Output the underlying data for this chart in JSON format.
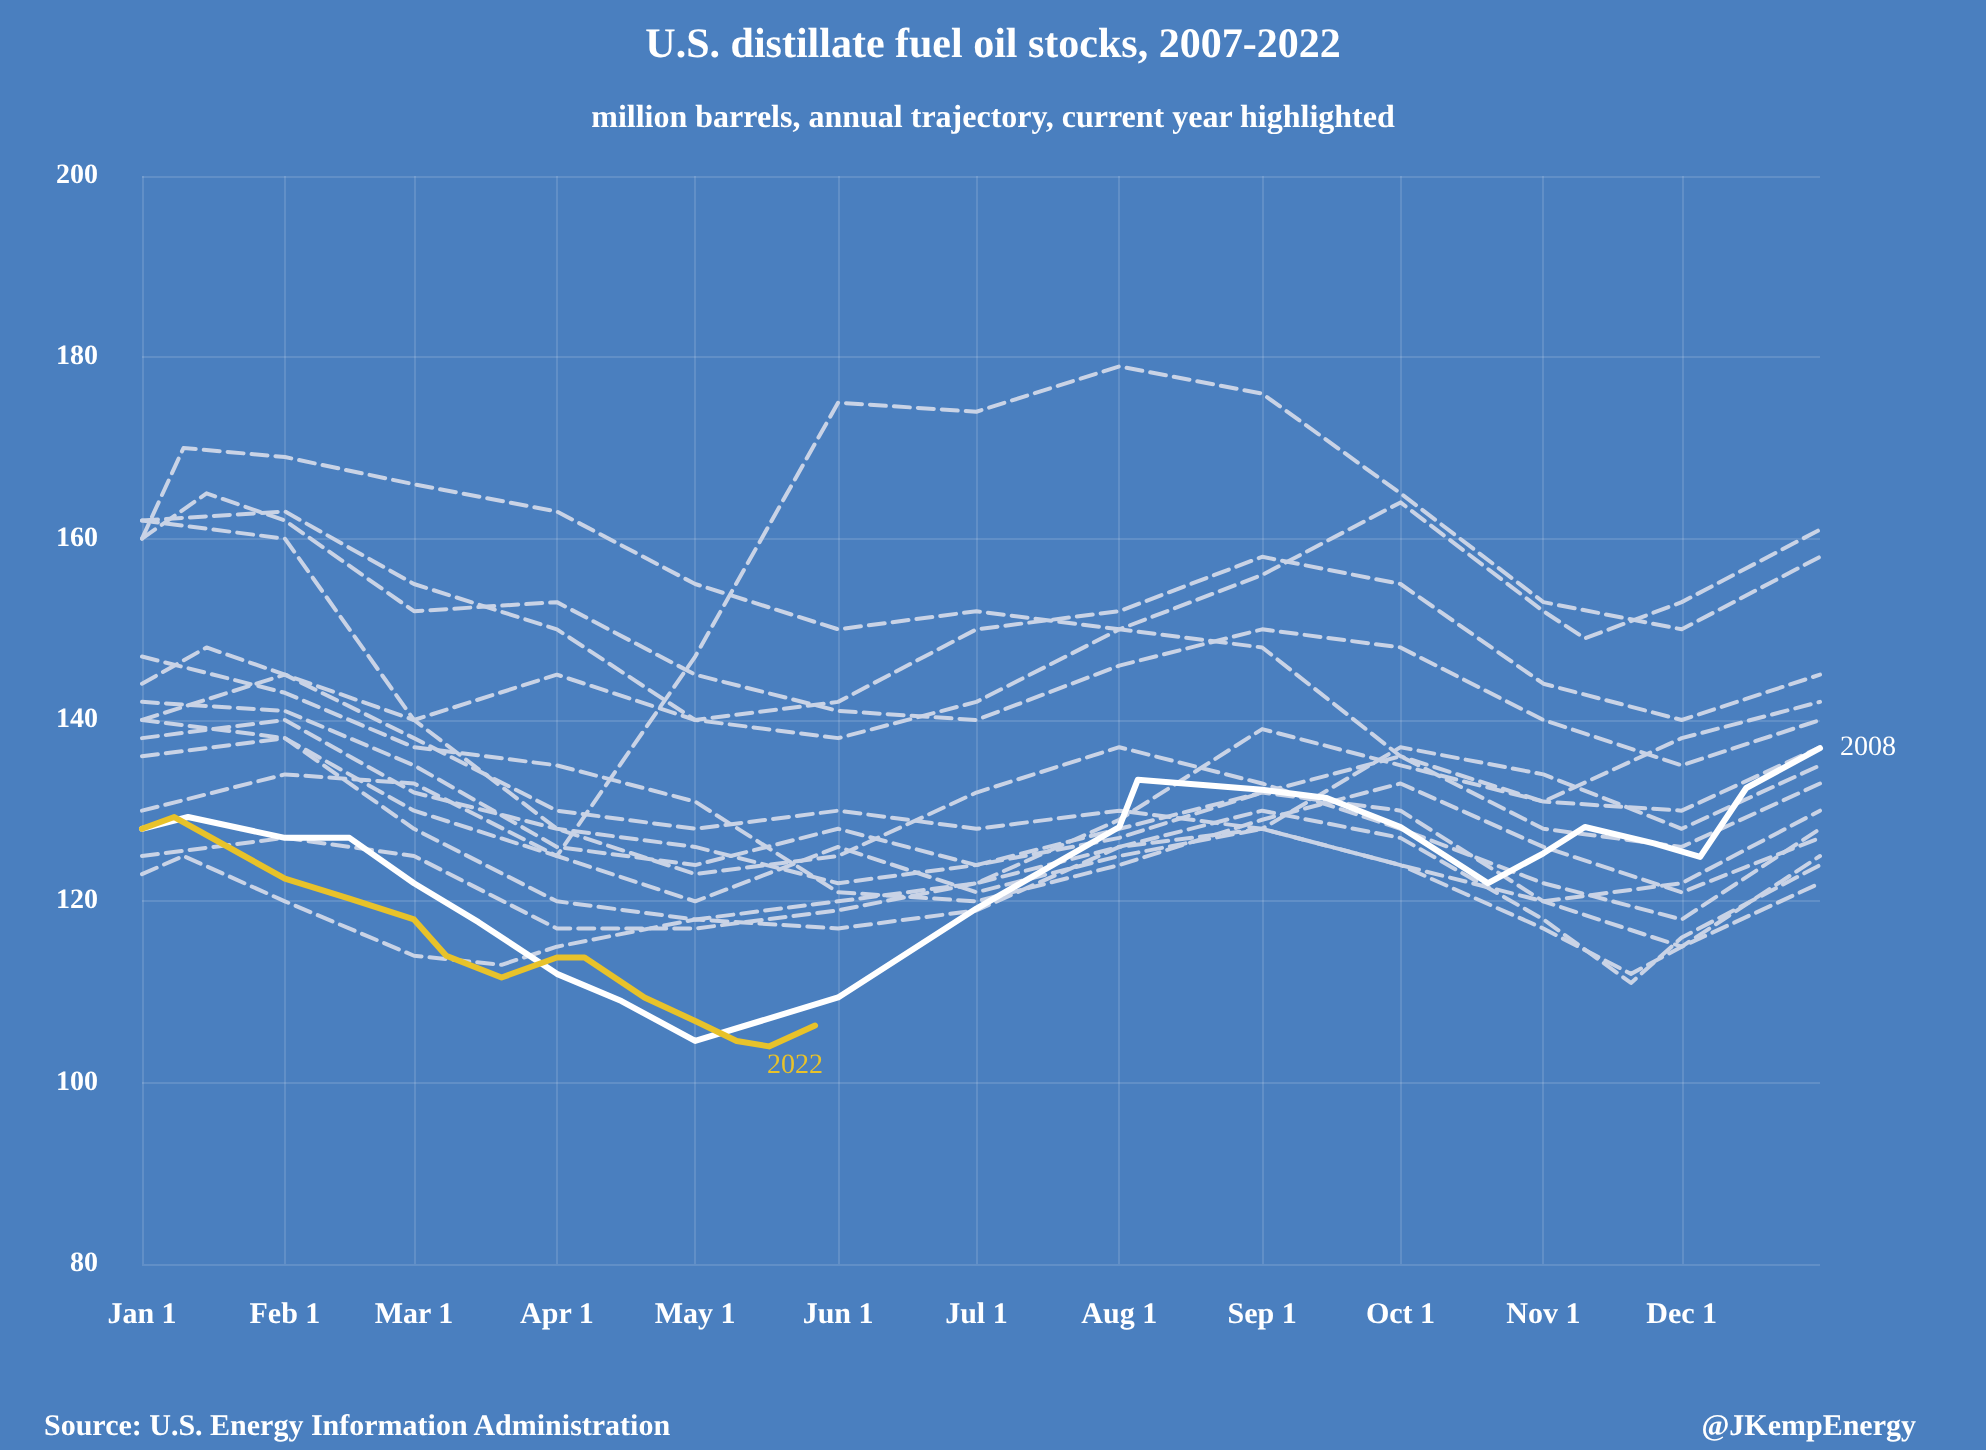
{
  "chart_data": {
    "type": "line",
    "title": "U.S. distillate fuel oil stocks, 2007-2022",
    "subtitle": "million barrels, annual trajectory, current year highlighted",
    "annotations": [
      "Source: U.S. Energy Information Administration",
      "@JKempEnergy"
    ],
    "xlim": [
      "--01-01",
      "--12-31"
    ],
    "xticks": [
      {
        "value": "--01-01",
        "label": "Jan 1"
      },
      {
        "value": "--02-01",
        "label": "Feb 1"
      },
      {
        "value": "--03-01",
        "label": "Mar 1"
      },
      {
        "value": "--04-01",
        "label": "Apr 1"
      },
      {
        "value": "--05-01",
        "label": "May 1"
      },
      {
        "value": "--06-01",
        "label": "Jun 1"
      },
      {
        "value": "--07-01",
        "label": "Jul 1"
      },
      {
        "value": "--08-01",
        "label": "Aug 1"
      },
      {
        "value": "--09-01",
        "label": "Sep 1"
      },
      {
        "value": "--10-01",
        "label": "Oct 1"
      },
      {
        "value": "--11-01",
        "label": "Nov 1"
      },
      {
        "value": "--12-01",
        "label": "Dec 1"
      }
    ],
    "ylim": [
      80,
      200
    ],
    "yticks": [
      80,
      100,
      120,
      140,
      160,
      180,
      200
    ],
    "grid": true,
    "marker": "none",
    "series": [
      {
        "color": "#c9d3e6",
        "line_style": "dashed",
        "x": [
          "--01-01",
          "--02-01",
          "--03-01",
          "--04-01",
          "--05-01",
          "--06-01",
          "--07-01",
          "--08-01",
          "--09-01",
          "--10-01",
          "--11-01",
          "--12-01",
          "--12-31"
        ],
        "values": [
          140,
          138,
          130,
          125,
          147,
          175,
          174,
          179,
          176,
          165,
          153,
          150,
          158
        ]
      },
      {
        "color": "#c9d3e6",
        "line_style": "dashed",
        "x": [
          "--01-01",
          "--01-10",
          "--02-01",
          "--03-01",
          "--04-01",
          "--05-01",
          "--06-01",
          "--07-01",
          "--08-01",
          "--09-01",
          "--10-01",
          "--11-01",
          "--11-10",
          "--12-01",
          "--12-31"
        ],
        "values": [
          160,
          170,
          169,
          166,
          163,
          155,
          150,
          152,
          150,
          156,
          164,
          152,
          149,
          153,
          161
        ]
      },
      {
        "color": "#c9d3e6",
        "line_style": "dashed",
        "x": [
          "--01-01",
          "--02-01",
          "--03-01",
          "--04-01",
          "--05-01",
          "--06-01",
          "--07-01",
          "--08-01",
          "--09-01",
          "--10-01",
          "--11-01",
          "--12-01",
          "--12-31"
        ],
        "values": [
          162,
          163,
          155,
          150,
          140,
          142,
          150,
          152,
          158,
          155,
          144,
          140,
          145
        ]
      },
      {
        "color": "#c9d3e6",
        "line_style": "dashed",
        "x": [
          "--01-01",
          "--01-15",
          "--02-01",
          "--03-01",
          "--04-01",
          "--05-01",
          "--06-01",
          "--07-01",
          "--08-01",
          "--09-01",
          "--10-01",
          "--11-01",
          "--12-01",
          "--12-31"
        ],
        "values": [
          160,
          165,
          162,
          152,
          153,
          145,
          141,
          140,
          146,
          150,
          148,
          140,
          135,
          140
        ]
      },
      {
        "color": "#c9d3e6",
        "line_style": "dashed",
        "x": [
          "--01-01",
          "--02-01",
          "--03-01",
          "--04-01",
          "--05-01",
          "--06-01",
          "--07-01",
          "--08-01",
          "--09-01",
          "--10-01",
          "--11-01",
          "--12-01",
          "--12-31"
        ],
        "values": [
          162,
          160,
          140,
          128,
          123,
          125,
          132,
          137,
          133,
          128,
          122,
          118,
          128
        ]
      },
      {
        "color": "#c9d3e6",
        "line_style": "dashed",
        "x": [
          "--01-01",
          "--01-15",
          "--02-01",
          "--03-01",
          "--04-01",
          "--05-01",
          "--06-01",
          "--07-01",
          "--08-01",
          "--09-01",
          "--10-01",
          "--11-01",
          "--12-01",
          "--12-31"
        ],
        "values": [
          144,
          148,
          145,
          140,
          145,
          140,
          138,
          142,
          150,
          148,
          136,
          131,
          138,
          142
        ]
      },
      {
        "color": "#c9d3e6",
        "line_style": "dashed",
        "x": [
          "--01-01",
          "--02-01",
          "--03-01",
          "--04-01",
          "--05-01",
          "--06-01",
          "--07-01",
          "--08-01",
          "--09-01",
          "--10-01",
          "--11-01",
          "--12-01",
          "--12-31"
        ],
        "values": [
          140,
          145,
          138,
          130,
          128,
          130,
          128,
          130,
          128,
          137,
          134,
          128,
          135
        ]
      },
      {
        "color": "#c9d3e6",
        "line_style": "dashed",
        "x": [
          "--01-01",
          "--02-01",
          "--03-01",
          "--04-01",
          "--05-01",
          "--06-01",
          "--07-01",
          "--08-01",
          "--09-01",
          "--10-01",
          "--11-01",
          "--12-01",
          "--12-31"
        ],
        "values": [
          138,
          140,
          132,
          128,
          126,
          122,
          124,
          128,
          132,
          130,
          120,
          115,
          125
        ]
      },
      {
        "color": "#c9d3e6",
        "line_style": "dashed",
        "x": [
          "--01-01",
          "--02-01",
          "--03-01",
          "--04-01",
          "--05-01",
          "--06-01",
          "--07-01",
          "--08-01",
          "--09-01",
          "--10-01",
          "--11-01",
          "--11-20",
          "--12-01",
          "--12-31"
        ],
        "values": [
          136,
          138,
          128,
          120,
          118,
          120,
          122,
          126,
          130,
          127,
          118,
          111,
          116,
          124
        ]
      },
      {
        "color": "#c9d3e6",
        "line_style": "dashed",
        "x": [
          "--01-01",
          "--02-01",
          "--03-01",
          "--04-01",
          "--05-01",
          "--06-01",
          "--07-01",
          "--08-01",
          "--09-01",
          "--10-01",
          "--11-01",
          "--12-01",
          "--12-31"
        ],
        "values": [
          130,
          134,
          133,
          125,
          120,
          126,
          121,
          125,
          128,
          124,
          120,
          122,
          130
        ]
      },
      {
        "color": "#c9d3e6",
        "line_style": "dashed",
        "x": [
          "--01-01",
          "--01-10",
          "--02-01",
          "--03-01",
          "--03-20",
          "--04-01",
          "--05-01",
          "--06-01",
          "--07-01",
          "--08-01",
          "--09-01",
          "--10-01",
          "--11-01",
          "--11-20",
          "--12-01",
          "--12-31"
        ],
        "values": [
          123,
          125,
          120,
          114,
          113,
          115,
          118,
          117,
          119,
          126,
          128,
          124,
          117,
          112,
          115,
          122
        ]
      },
      {
        "color": "#c9d3e6",
        "line_style": "dashed",
        "x": [
          "--01-01",
          "--02-01",
          "--03-01",
          "--04-01",
          "--05-01",
          "--06-01",
          "--07-01",
          "--08-01",
          "--09-01",
          "--10-01",
          "--11-01",
          "--12-01",
          "--12-31"
        ],
        "values": [
          142,
          141,
          135,
          126,
          124,
          128,
          124,
          127,
          132,
          136,
          128,
          126,
          133
        ]
      },
      {
        "color": "#c9d3e6",
        "line_style": "dashed",
        "x": [
          "--01-01",
          "--02-01",
          "--03-01",
          "--04-01",
          "--05-01",
          "--06-01",
          "--07-01",
          "--08-01",
          "--09-01",
          "--10-01",
          "--11-01",
          "--12-01",
          "--12-31"
        ],
        "values": [
          147,
          143,
          137,
          135,
          131,
          121,
          120,
          124,
          129,
          133,
          126,
          121,
          127
        ]
      },
      {
        "color": "#c9d3e6",
        "line_style": "dashed",
        "x": [
          "--01-01",
          "--02-01",
          "--03-01",
          "--04-01",
          "--05-01",
          "--06-01",
          "--07-01",
          "--08-01",
          "--09-01",
          "--10-01",
          "--11-01",
          "--12-01",
          "--12-31"
        ],
        "values": [
          125,
          127,
          125,
          117,
          117,
          119,
          122,
          129,
          139,
          135,
          131,
          130,
          137
        ]
      },
      {
        "name": "2008",
        "color": "#ffffff",
        "line_style": "solid",
        "x": [
          "--01-01",
          "--01-11",
          "--02-01",
          "--02-15",
          "--03-01",
          "--03-15",
          "--04-01",
          "--04-15",
          "--05-01",
          "--06-01",
          "--07-01",
          "--08-01",
          "--08-05",
          "--09-01",
          "--09-15",
          "--10-01",
          "--10-20",
          "--11-01",
          "--11-10",
          "--11-25",
          "--12-05",
          "--12-15",
          "--12-31"
        ],
        "values": [
          128,
          129.3,
          127,
          127,
          122,
          117.7,
          112,
          109,
          104.6,
          109.4,
          119.2,
          128.2,
          133.4,
          132.3,
          131.4,
          128.2,
          122,
          125.3,
          128.2,
          126.4,
          124.9,
          132.5,
          136.9
        ]
      },
      {
        "name": "2022",
        "color": "#e8c22a",
        "line_style": "solid",
        "x": [
          "--01-01",
          "--01-08",
          "--02-01",
          "--02-15",
          "--03-01",
          "--03-08",
          "--03-20",
          "--04-01",
          "--04-07",
          "--04-20",
          "--05-01",
          "--05-10",
          "--05-17",
          "--05-27"
        ],
        "values": [
          128,
          129.3,
          122.5,
          120.3,
          118,
          114,
          111.6,
          113.8,
          113.8,
          109.4,
          106.8,
          104.6,
          104,
          106.3
        ]
      }
    ]
  }
}
